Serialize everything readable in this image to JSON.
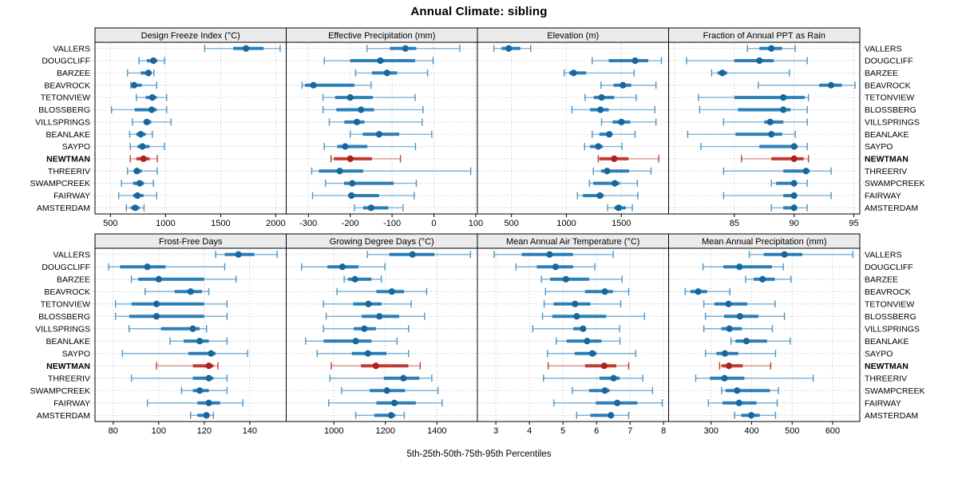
{
  "page": {
    "title": "Annual Climate: sibling",
    "footer": "5th-25th-50th-75th-95th Percentiles"
  },
  "colors": {
    "strip_bg": "#ebebeb",
    "panel_border": "#000000",
    "grid": "#c9c9c9",
    "background": "#ffffff",
    "series": {
      "normal": {
        "dot": "#17679c",
        "bar": "#2b7fb8",
        "whisker": "#7fb2d6",
        "cap": "#4a94c4"
      },
      "highlight": {
        "dot": "#b01f1f",
        "bar": "#bf3d32",
        "whisker": "#d9948c",
        "cap": "#b43c35"
      }
    }
  },
  "chart_data": {
    "type": "dotplot",
    "subtype": "percentile-intervals",
    "title": "Annual Climate: sibling",
    "xlabel": "5th-25th-50th-75th-95th Percentiles",
    "percentiles": [
      5,
      25,
      50,
      75,
      95
    ],
    "grid": "dashed",
    "stations": [
      "VALLERS",
      "DOUGCLIFF",
      "BARZEE",
      "BEAVROCK",
      "TETONVIEW",
      "BLOSSBERG",
      "VILLSPRINGS",
      "BEANLAKE",
      "SAYPO",
      "NEWTMAN",
      "THREERIV",
      "SWAMPCREEK",
      "FAIRWAY",
      "AMSTERDAM"
    ],
    "highlight_station": "NEWTMAN",
    "panels": [
      {
        "title": "Design Freeze Index (°C)",
        "row": 0,
        "col": 0,
        "xlim": [
          360,
          2095
        ],
        "ticks": [
          500,
          1000,
          1500,
          2000
        ],
        "values": [
          [
            1355,
            1615,
            1730,
            1890,
            2040
          ],
          [
            760,
            830,
            890,
            925,
            990
          ],
          [
            655,
            775,
            845,
            870,
            895
          ],
          [
            685,
            695,
            715,
            785,
            920
          ],
          [
            735,
            820,
            880,
            920,
            1010
          ],
          [
            510,
            720,
            875,
            920,
            1010
          ],
          [
            700,
            800,
            830,
            870,
            1050
          ],
          [
            675,
            735,
            775,
            820,
            880
          ],
          [
            680,
            745,
            790,
            855,
            990
          ],
          [
            680,
            735,
            800,
            855,
            925
          ],
          [
            655,
            710,
            740,
            785,
            925
          ],
          [
            600,
            705,
            765,
            805,
            890
          ],
          [
            575,
            705,
            745,
            800,
            920
          ],
          [
            645,
            685,
            725,
            765,
            805
          ]
        ]
      },
      {
        "title": "Effective Precipitation (mm)",
        "row": 0,
        "col": 1,
        "xlim": [
          -353,
          104
        ],
        "ticks": [
          -300,
          -200,
          -100,
          0,
          100
        ],
        "values": [
          [
            -160,
            -105,
            -68,
            -42,
            62
          ],
          [
            -262,
            -200,
            -128,
            -45,
            -2
          ],
          [
            -187,
            -148,
            -112,
            -88,
            -15
          ],
          [
            -315,
            -308,
            -288,
            -190,
            -150
          ],
          [
            -265,
            -236,
            -200,
            -146,
            -45
          ],
          [
            -265,
            -233,
            -174,
            -143,
            -26
          ],
          [
            -250,
            -214,
            -184,
            -166,
            -28
          ],
          [
            -200,
            -170,
            -131,
            -83,
            -5
          ],
          [
            -262,
            -231,
            -212,
            -159,
            -44
          ],
          [
            -246,
            -239,
            -200,
            -148,
            -80
          ],
          [
            -292,
            -275,
            -225,
            -169,
            88
          ],
          [
            -259,
            -215,
            -195,
            -96,
            -42
          ],
          [
            -290,
            -205,
            -197,
            -131,
            -47
          ],
          [
            -190,
            -169,
            -150,
            -109,
            -74
          ]
        ]
      },
      {
        "title": "Elevation (m)",
        "row": 0,
        "col": 2,
        "xlim": [
          190,
          1930
        ],
        "ticks": [
          500,
          1000,
          1500
        ],
        "values": [
          [
            340,
            410,
            475,
            580,
            675
          ],
          [
            1235,
            1385,
            1625,
            1745,
            1865
          ],
          [
            980,
            1025,
            1065,
            1180,
            1615
          ],
          [
            1315,
            1430,
            1515,
            1590,
            1815
          ],
          [
            1170,
            1250,
            1320,
            1435,
            1635
          ],
          [
            1050,
            1215,
            1310,
            1385,
            1805
          ],
          [
            1320,
            1420,
            1500,
            1580,
            1815
          ],
          [
            1235,
            1300,
            1390,
            1420,
            1625
          ],
          [
            1165,
            1215,
            1290,
            1330,
            1505
          ],
          [
            1290,
            1300,
            1435,
            1565,
            1840
          ],
          [
            1245,
            1315,
            1370,
            1570,
            1770
          ],
          [
            1210,
            1245,
            1440,
            1485,
            1645
          ],
          [
            1100,
            1150,
            1305,
            1340,
            1650
          ],
          [
            1375,
            1435,
            1475,
            1540,
            1600
          ]
        ]
      },
      {
        "title": "Fraction of Annual PPT as Rain",
        "row": 0,
        "col": 3,
        "xlim": [
          79.5,
          95.5
        ],
        "ticks": [
          85,
          90,
          95
        ],
        "grid_extra": [
          80
        ],
        "values": [
          [
            86.1,
            87.1,
            88.1,
            89,
            90.1
          ],
          [
            81,
            85,
            87.1,
            88.3,
            91.1
          ],
          [
            83.1,
            83.6,
            84,
            84.4,
            89.6
          ],
          [
            87,
            92.1,
            93.1,
            94,
            95.1
          ],
          [
            82,
            85,
            89.1,
            90.9,
            91.2
          ],
          [
            82.1,
            85.3,
            89.1,
            89.7,
            91.1
          ],
          [
            84.1,
            87.5,
            88,
            89.1,
            91.1
          ],
          [
            81.1,
            85.1,
            88.1,
            89,
            90.1
          ],
          [
            82.2,
            87.1,
            90,
            90.3,
            91.1
          ],
          [
            85.6,
            88.1,
            90,
            90.8,
            91.2
          ],
          [
            84.1,
            89.1,
            91,
            91.3,
            93.1
          ],
          [
            88.1,
            88.5,
            90,
            90.2,
            91.1
          ],
          [
            84.1,
            89.1,
            90,
            90.2,
            93.1
          ],
          [
            88.1,
            89.1,
            90,
            90.2,
            91.1
          ]
        ]
      },
      {
        "title": "Frost-Free Days",
        "row": 1,
        "col": 0,
        "xlim": [
          72,
          156
        ],
        "ticks": [
          80,
          100,
          120,
          140
        ],
        "values": [
          [
            125,
            129,
            135,
            142,
            152
          ],
          [
            78,
            83,
            95,
            103,
            129
          ],
          [
            88,
            91,
            100,
            120,
            134
          ],
          [
            94,
            107,
            114,
            119,
            122
          ],
          [
            81,
            88,
            99,
            120,
            130
          ],
          [
            81,
            87,
            99,
            120,
            130
          ],
          [
            87,
            101,
            115,
            118,
            121
          ],
          [
            105,
            111,
            118,
            122,
            130
          ],
          [
            84,
            113,
            123,
            125,
            139
          ],
          [
            99,
            115,
            122,
            124,
            126
          ],
          [
            88,
            115,
            122,
            124,
            130
          ],
          [
            110,
            115,
            118,
            122,
            130
          ],
          [
            95,
            117,
            122,
            127,
            137
          ],
          [
            114,
            117,
            121,
            122,
            124
          ]
        ]
      },
      {
        "title": "Growing Degree Days (°C)",
        "row": 1,
        "col": 1,
        "xlim": [
          815,
          1557
        ],
        "ticks": [
          1000,
          1200,
          1400
        ],
        "values": [
          [
            1130,
            1215,
            1305,
            1390,
            1530
          ],
          [
            875,
            975,
            1033,
            1095,
            1198
          ],
          [
            1040,
            1055,
            1082,
            1146,
            1184
          ],
          [
            1012,
            1165,
            1225,
            1272,
            1360
          ],
          [
            960,
            1075,
            1134,
            1185,
            1300
          ],
          [
            970,
            1108,
            1177,
            1253,
            1352
          ],
          [
            960,
            1077,
            1118,
            1163,
            1290
          ],
          [
            890,
            960,
            1085,
            1146,
            1245
          ],
          [
            935,
            1070,
            1132,
            1204,
            1290
          ],
          [
            990,
            1105,
            1163,
            1289,
            1335
          ],
          [
            985,
            1194,
            1270,
            1332,
            1380
          ],
          [
            1030,
            1139,
            1206,
            1276,
            1404
          ],
          [
            980,
            1165,
            1235,
            1318,
            1420
          ],
          [
            1085,
            1157,
            1222,
            1239,
            1273
          ]
        ]
      },
      {
        "title": "Mean Annual Air Temperature (°C)",
        "row": 1,
        "col": 2,
        "xlim": [
          2.45,
          8.15
        ],
        "ticks": [
          3,
          4,
          5,
          6,
          7,
          8
        ],
        "values": [
          [
            2.95,
            3.77,
            4.6,
            5.3,
            6.5
          ],
          [
            3.6,
            4.22,
            4.78,
            5.3,
            5.95
          ],
          [
            4.36,
            4.62,
            5.09,
            5.78,
            6.76
          ],
          [
            4.48,
            5.66,
            6.25,
            6.49,
            6.96
          ],
          [
            4.44,
            4.72,
            5.36,
            5.82,
            6.72
          ],
          [
            4.39,
            4.68,
            5.41,
            6.29,
            7.43
          ],
          [
            4.1,
            5.31,
            5.6,
            5.67,
            6.69
          ],
          [
            4.8,
            5.11,
            5.72,
            6.15,
            6.7
          ],
          [
            4.54,
            5.35,
            5.88,
            6,
            7.17
          ],
          [
            4.56,
            5.66,
            6.23,
            6.59,
            6.96
          ],
          [
            4.42,
            6.09,
            6.51,
            6.69,
            7.38
          ],
          [
            5.28,
            5.78,
            6.25,
            6.39,
            7.67
          ],
          [
            4.73,
            5.98,
            6.62,
            7.22,
            7.96
          ],
          [
            5.41,
            5.82,
            6.43,
            6.5,
            6.96
          ]
        ]
      },
      {
        "title": "Mean Annual Precipitation (mm)",
        "row": 1,
        "col": 3,
        "xlim": [
          195,
          667
        ],
        "ticks": [
          300,
          400,
          500,
          600
        ],
        "values": [
          [
            394,
            430,
            481,
            525,
            650
          ],
          [
            280,
            330,
            370,
            450,
            478
          ],
          [
            385,
            405,
            427,
            457,
            497
          ],
          [
            236,
            249,
            268,
            290,
            346
          ],
          [
            282,
            308,
            343,
            389,
            458
          ],
          [
            286,
            332,
            371,
            417,
            481
          ],
          [
            282,
            325,
            345,
            376,
            451
          ],
          [
            349,
            360,
            387,
            438,
            495
          ],
          [
            286,
            313,
            334,
            367,
            459
          ],
          [
            321,
            326,
            344,
            378,
            447
          ],
          [
            262,
            297,
            333,
            382,
            552
          ],
          [
            326,
            336,
            364,
            445,
            466
          ],
          [
            293,
            328,
            369,
            412,
            463
          ],
          [
            358,
            374,
            399,
            420,
            459
          ]
        ]
      }
    ]
  }
}
